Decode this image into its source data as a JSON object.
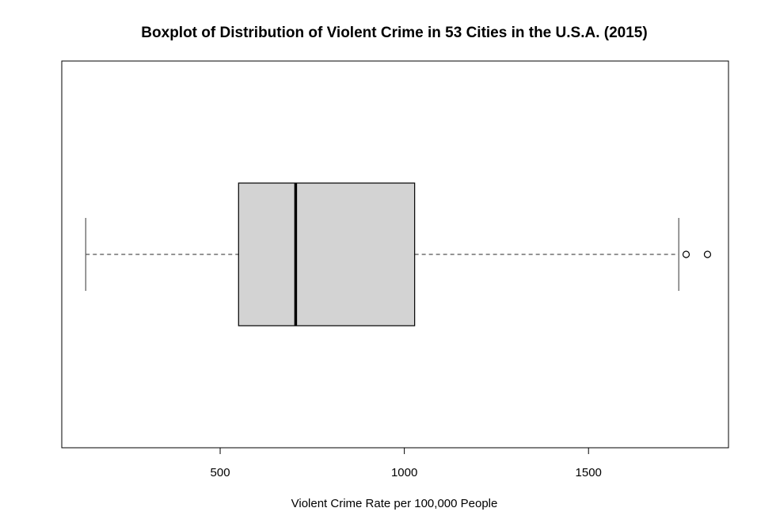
{
  "chart_data": {
    "type": "boxplot",
    "orientation": "horizontal",
    "title": "Boxplot of Distribution of Violent Crime in 53 Cities in the U.S.A. (2015)",
    "xlabel": "Violent Crime Rate per 100,000 People",
    "ylabel": "",
    "xlim": [
      70,
      1880
    ],
    "x_ticks": [
      500,
      1000,
      1500
    ],
    "x_tick_labels": [
      "500",
      "1000",
      "1500"
    ],
    "grid": false,
    "box": {
      "whisker_low": 135,
      "q1": 550,
      "median": 705,
      "q3": 1028,
      "whisker_high": 1745
    },
    "outliers": [
      1765,
      1823
    ],
    "fill_color": "#d3d3d3",
    "line_color": "#000000",
    "whisker_color": "#555555"
  }
}
